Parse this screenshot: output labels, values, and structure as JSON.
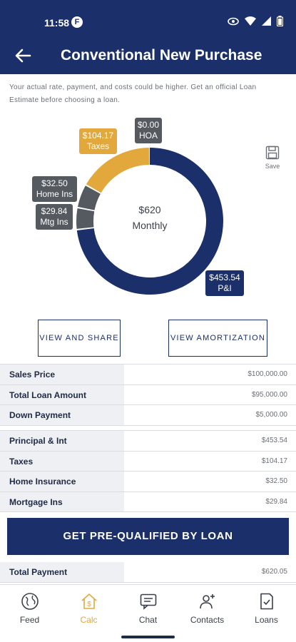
{
  "status": {
    "time": "11:58",
    "app_icon_letter": "F"
  },
  "header": {
    "title": "Conventional New Purchase"
  },
  "disclaimer": "Your actual rate, payment, and costs could be higher. Get an official Loan Estimate before choosing a loan.",
  "chart_data": {
    "type": "pie",
    "donut": true,
    "center_amount": "$620",
    "center_label": "Monthly",
    "slices": [
      {
        "label": "P&I",
        "value": 453.54,
        "display": "$453.54",
        "color": "#1b2f6b"
      },
      {
        "label": "Mtg Ins",
        "value": 29.84,
        "display": "$29.84",
        "color": "#555a60"
      },
      {
        "label": "Home Ins",
        "value": 32.5,
        "display": "$32.50",
        "color": "#555a60"
      },
      {
        "label": "Taxes",
        "value": 104.17,
        "display": "$104.17",
        "color": "#e3a83c"
      },
      {
        "label": "HOA",
        "value": 0.0,
        "display": "$0.00",
        "color": "#555a60"
      }
    ]
  },
  "save_label": "Save",
  "buttons": {
    "view_share": "VIEW AND SHARE",
    "view_amortization": "VIEW AMORTIZATION",
    "cta": "GET PRE-QUALIFIED BY LOAN"
  },
  "loan_table": [
    {
      "label": "Sales Price",
      "value": "$100,000.00"
    },
    {
      "label": "Total Loan Amount",
      "value": "$95,000.00"
    },
    {
      "label": "Down Payment",
      "value": "$5,000.00"
    }
  ],
  "payment_table": [
    {
      "label": "Principal & Int",
      "value": "$453.54"
    },
    {
      "label": "Taxes",
      "value": "$104.17"
    },
    {
      "label": "Home Insurance",
      "value": "$32.50"
    },
    {
      "label": "Mortgage Ins",
      "value": "$29.84"
    }
  ],
  "total": {
    "label": "Total Payment",
    "value": "$620.05"
  },
  "nav": [
    {
      "label": "Feed",
      "icon": "globe-icon",
      "active": false
    },
    {
      "label": "Calc",
      "icon": "house-dollar-icon",
      "active": true
    },
    {
      "label": "Chat",
      "icon": "chat-icon",
      "active": false
    },
    {
      "label": "Contacts",
      "icon": "contacts-icon",
      "active": false
    },
    {
      "label": "Loans",
      "icon": "document-check-icon",
      "active": false
    }
  ],
  "colors": {
    "primary": "#1b2f6b",
    "accent": "#e3a83c",
    "gray": "#555a60"
  }
}
